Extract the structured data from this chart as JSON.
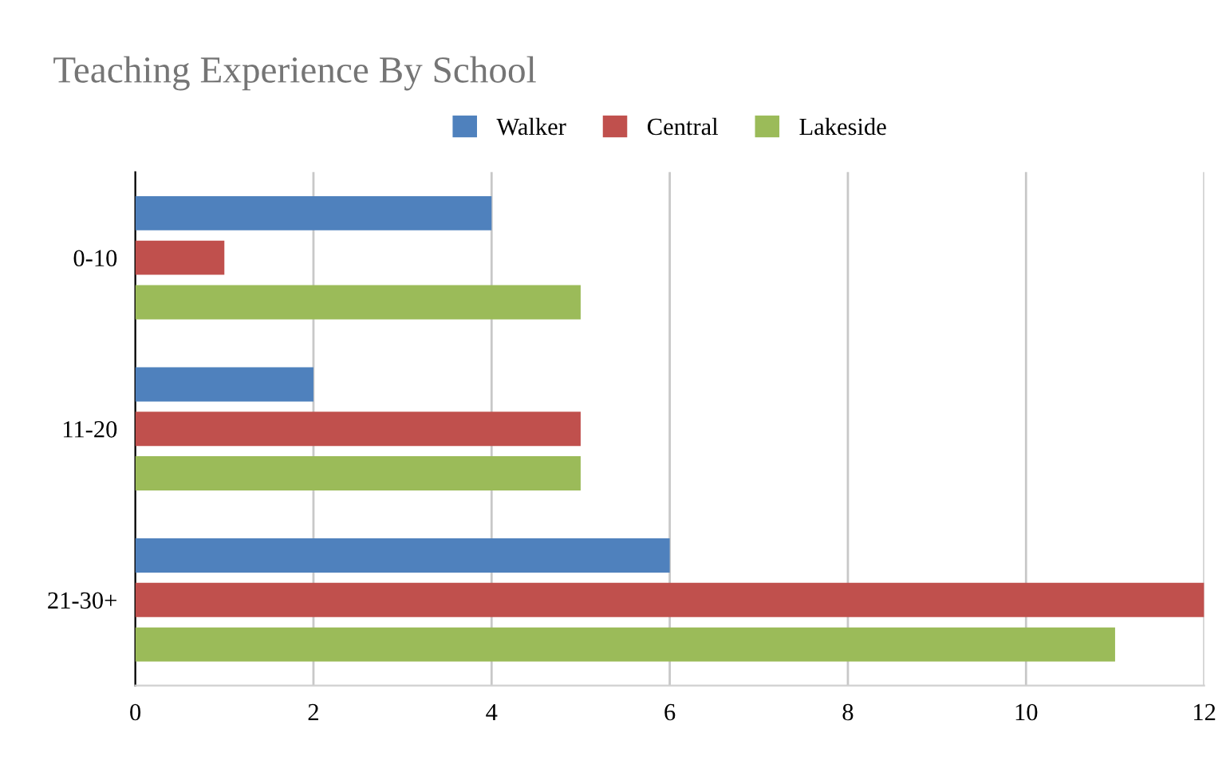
{
  "chart_data": {
    "type": "bar",
    "orientation": "horizontal",
    "title": "Teaching Experience By School",
    "categories": [
      "0-10",
      "11-20",
      "21-30+"
    ],
    "series": [
      {
        "name": "Walker",
        "color": "#4f81bd",
        "values": [
          4,
          2,
          6
        ]
      },
      {
        "name": "Central",
        "color": "#c0504d",
        "values": [
          1,
          5,
          12
        ]
      },
      {
        "name": "Lakeside",
        "color": "#9bbb59",
        "values": [
          5,
          5,
          11
        ]
      }
    ],
    "xlim": [
      0,
      12
    ],
    "xticks": [
      0,
      2,
      4,
      6,
      8,
      10,
      12
    ],
    "grid": "x",
    "legend": "top"
  }
}
